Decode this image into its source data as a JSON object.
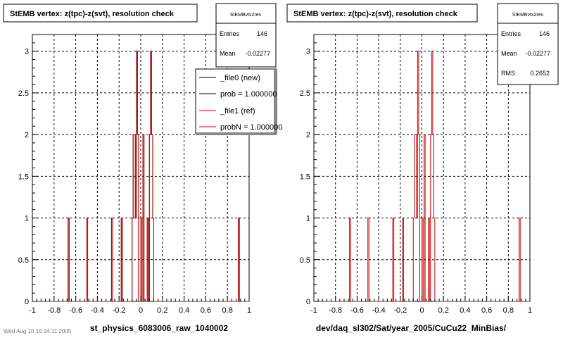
{
  "chart_data": [
    {
      "type": "bar",
      "title": "StEMB  vertex: z(tpc)-z(svt), resolution check",
      "xlabel": "st_physics_6083006_raw_1040002",
      "xlim": [
        -1,
        1
      ],
      "ylim": [
        0,
        3.2
      ],
      "x_ticks": [
        "-1",
        "-0.8",
        "-0.6",
        "-0.4",
        "-0.2",
        "0",
        "0.2",
        "0.4",
        "0.6",
        "0.8",
        "1"
      ],
      "y_ticks": [
        "0",
        "0.5",
        "1",
        "1.5",
        "2",
        "2.5",
        "3"
      ],
      "grid": true,
      "bins": {
        "low": -1,
        "high": 1,
        "n": 200
      },
      "series": [
        {
          "name": "_file0 (new)",
          "color": "#000000",
          "x": [
            -0.665,
            -0.495,
            -0.265,
            -0.175,
            -0.075,
            -0.065,
            -0.055,
            -0.045,
            -0.035,
            -0.025,
            0.005,
            0.025,
            0.065,
            0.085,
            0.095,
            0.105,
            0.115,
            0.905
          ],
          "values": [
            1,
            1,
            1,
            1,
            1,
            2,
            2,
            1,
            3,
            2,
            1,
            2,
            1,
            2,
            3,
            2,
            1,
            1
          ]
        },
        {
          "name": "_file1 (ref)",
          "color": "#cc0000",
          "x": [
            -0.665,
            -0.495,
            -0.265,
            -0.175,
            -0.075,
            -0.065,
            -0.055,
            -0.045,
            -0.035,
            -0.025,
            0.005,
            0.025,
            0.065,
            0.085,
            0.095,
            0.105,
            0.115,
            0.905
          ],
          "values": [
            1,
            1,
            1,
            1,
            1,
            2,
            2,
            1,
            3,
            2,
            1,
            2,
            1,
            2,
            3,
            2,
            1,
            1
          ]
        }
      ],
      "stats": {
        "name": "StEMBvtx2res",
        "entries_label": "Entries",
        "entries": "146",
        "mean_label": "Mean",
        "mean": "-0.02277"
      },
      "legend": {
        "position": "top-right",
        "entries": [
          {
            "label": "_file0 (new)",
            "color": "#000000"
          },
          {
            "label": "prob = 1.000000",
            "color": "#000000"
          },
          {
            "label": "_file1 (ref)",
            "color": "#cc0000"
          },
          {
            "label": "probN = 1.000000",
            "color": "#cc0000"
          }
        ]
      }
    },
    {
      "type": "bar",
      "title": "StEMB  vertex: z(tpc)-z(svt), resolution check",
      "xlabel": "dev/daq_sl302/Sat/year_2005/CuCu22_MinBias/",
      "xlim": [
        -1,
        1
      ],
      "ylim": [
        0,
        3.2
      ],
      "x_ticks": [
        "-1",
        "-0.8",
        "-0.6",
        "-0.4",
        "-0.2",
        "0",
        "0.2",
        "0.4",
        "0.6",
        "0.8",
        "1"
      ],
      "y_ticks": [
        "0",
        "0.5",
        "1",
        "1.5",
        "2",
        "2.5",
        "3"
      ],
      "grid": true,
      "bins": {
        "low": -1,
        "high": 1,
        "n": 200
      },
      "series": [
        {
          "name": "",
          "color": "#cc0000",
          "x": [
            -0.665,
            -0.495,
            -0.265,
            -0.175,
            -0.075,
            -0.065,
            -0.055,
            -0.045,
            -0.035,
            -0.025,
            0.005,
            0.025,
            0.065,
            0.085,
            0.095,
            0.105,
            0.115,
            0.905
          ],
          "values": [
            1,
            1,
            1,
            1,
            1,
            2,
            2,
            1,
            3,
            2,
            1,
            2,
            1,
            2,
            3,
            2,
            1,
            1
          ]
        }
      ],
      "stats": {
        "name": "StEMBvtx2res",
        "entries_label": "Entries",
        "entries": "146",
        "mean_label": "Mean",
        "mean": "-0.02277",
        "rms_label": "RMS",
        "rms": "0.2652"
      }
    }
  ],
  "footer": "Wed Aug 10 15:24:11 2005"
}
